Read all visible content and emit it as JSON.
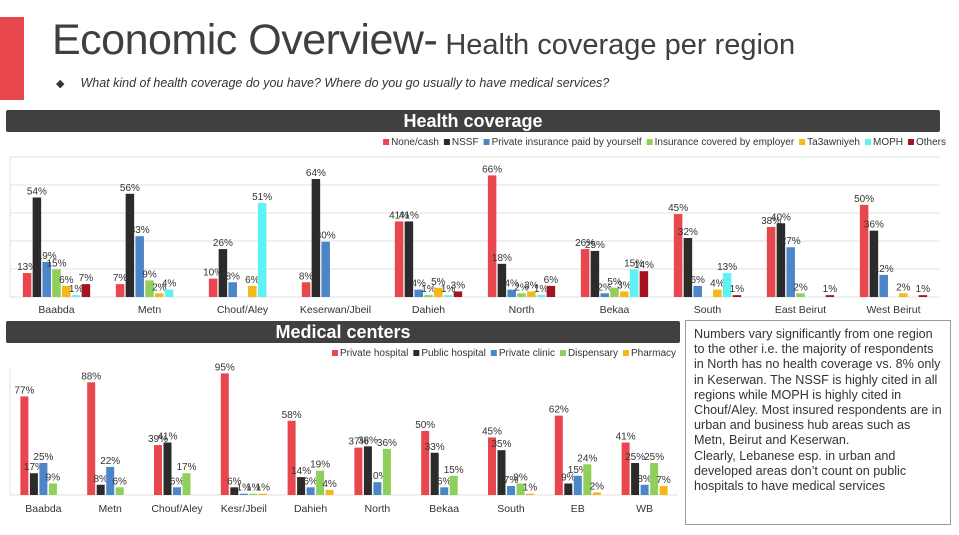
{
  "header": {
    "title_main": "Economic Overview-",
    "title_sub": " Health coverage per region",
    "question_bullet": "◆",
    "question": "What kind of health coverage do you have? Where do you go usually to have medical services?",
    "accent_color": "#e8474d"
  },
  "note": {
    "paragraph1": "Numbers vary significantly from one region to the other i.e. the majority of respondents in North has no health coverage vs. 8% only in Keserwan. The NSSF is highly cited in all regions while MOPH is highly cited in Chouf/Aley. Most insured respondents are in urban and business hub areas such as Metn, Beirut and Keserwan.",
    "paragraph2": "Clearly, Lebanese esp. in urban and developed areas don’t count on public hospitals to have medical services"
  },
  "chart_data": [
    {
      "type": "bar",
      "title": "Health coverage",
      "legend_position": "top-right",
      "value_suffix": "%",
      "ylim": [
        0,
        70
      ],
      "grid": true,
      "categories": [
        "Baabda",
        "Metn",
        "Chouf/Aley",
        "Keserwan/Jbeil",
        "Dahieh",
        "North",
        "Bekaa",
        "South",
        "East Beirut",
        "West Beirut"
      ],
      "series": [
        {
          "name": "None/cash",
          "color": "#e8474d",
          "values": [
            13,
            7,
            10,
            8,
            41,
            66,
            26,
            45,
            38,
            50
          ]
        },
        {
          "name": "NSSF",
          "color": "#2b2b2b",
          "values": [
            54,
            56,
            26,
            64,
            41,
            18,
            25,
            32,
            40,
            36
          ]
        },
        {
          "name": "Private insurance paid by yourself",
          "color": "#4a86c8",
          "values": [
            19,
            33,
            8,
            30,
            4,
            4,
            2,
            6,
            27,
            12
          ]
        },
        {
          "name": "Insurance covered by employer",
          "color": "#8fcf5a",
          "values": [
            15,
            9,
            null,
            null,
            1,
            2,
            5,
            null,
            2,
            null
          ]
        },
        {
          "name": "Ta3awniyeh",
          "color": "#f5b71a",
          "values": [
            6,
            2,
            6,
            null,
            5,
            3,
            3,
            4,
            null,
            2
          ]
        },
        {
          "name": "MOPH",
          "color": "#5ef2f2",
          "values": [
            1,
            4,
            51,
            null,
            1,
            1,
            15,
            13,
            null,
            null
          ]
        },
        {
          "name": "Others",
          "color": "#a3141f",
          "values": [
            7,
            null,
            null,
            null,
            3,
            6,
            14,
            1,
            1,
            1
          ]
        }
      ]
    },
    {
      "type": "bar",
      "title": "Medical centers",
      "legend_position": "top-right",
      "value_suffix": "%",
      "ylim": [
        0,
        100
      ],
      "grid": false,
      "categories": [
        "Baabda",
        "Metn",
        "Chouf/Aley",
        "Kesr/Jbeil",
        "Dahieh",
        "North",
        "Bekaa",
        "South",
        "EB",
        "WB"
      ],
      "series": [
        {
          "name": "Private hospital",
          "color": "#e8474d",
          "values": [
            77,
            88,
            39,
            95,
            58,
            37,
            50,
            45,
            62,
            41
          ]
        },
        {
          "name": "Public hospital",
          "color": "#2b2b2b",
          "values": [
            17,
            8,
            41,
            6,
            14,
            38,
            33,
            35,
            9,
            25
          ]
        },
        {
          "name": "Private clinic",
          "color": "#4a86c8",
          "values": [
            25,
            22,
            6,
            1,
            6,
            10,
            6,
            7,
            15,
            8
          ]
        },
        {
          "name": "Dispensary",
          "color": "#8fcf5a",
          "values": [
            9,
            6,
            17,
            1,
            19,
            36,
            15,
            9,
            24,
            25
          ]
        },
        {
          "name": "Pharmacy",
          "color": "#f5b71a",
          "values": [
            null,
            null,
            null,
            1,
            4,
            null,
            null,
            1,
            2,
            7
          ]
        }
      ]
    }
  ]
}
